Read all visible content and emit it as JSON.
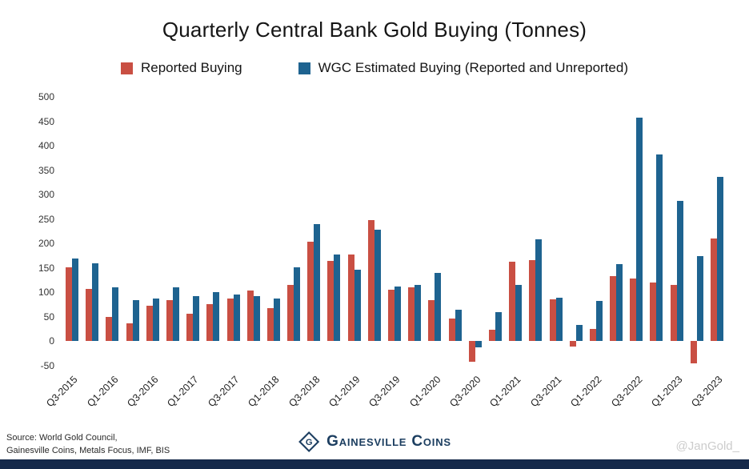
{
  "chart_data": {
    "type": "bar",
    "title": "Quarterly Central Bank Gold Buying (Tonnes)",
    "xlabel": "",
    "ylabel": "",
    "ylim": [
      -50,
      500
    ],
    "ytick_step": 50,
    "x_label_every": 2,
    "grid": false,
    "legend_position": "top",
    "categories": [
      "Q3-2015",
      "Q4-2015",
      "Q1-2016",
      "Q2-2016",
      "Q3-2016",
      "Q4-2016",
      "Q1-2017",
      "Q2-2017",
      "Q3-2017",
      "Q4-2017",
      "Q1-2018",
      "Q2-2018",
      "Q3-2018",
      "Q4-2018",
      "Q1-2019",
      "Q2-2019",
      "Q3-2019",
      "Q4-2019",
      "Q1-2020",
      "Q2-2020",
      "Q3-2020",
      "Q4-2020",
      "Q1-2021",
      "Q2-2021",
      "Q3-2021",
      "Q4-2021",
      "Q1-2022",
      "Q2-2022",
      "Q3-2022",
      "Q4-2022",
      "Q1-2023",
      "Q2-2023",
      "Q3-2023"
    ],
    "series": [
      {
        "name": "Reported Buying",
        "color": "#c94f43",
        "values": [
          152,
          108,
          50,
          37,
          72,
          85,
          57,
          76,
          88,
          104,
          68,
          116,
          203,
          164,
          178,
          248,
          106,
          110,
          84,
          46,
          -42,
          24,
          163,
          166,
          86,
          -10,
          26,
          133,
          128,
          121,
          115,
          -45,
          211
        ]
      },
      {
        "name": "WGC Estimated Buying (Reported and Unreported)",
        "color": "#1e6390",
        "values": [
          170,
          160,
          110,
          84,
          88,
          110,
          92,
          100,
          95,
          93,
          87,
          152,
          240,
          177,
          146,
          228,
          112,
          116,
          140,
          64,
          -12,
          60,
          115,
          209,
          90,
          33,
          82,
          158,
          458,
          382,
          287,
          175,
          337
        ]
      }
    ]
  },
  "footer": {
    "source_line1": "Source: World Gold Council,",
    "source_line2": "Gainesville Coins, Metals Focus, IMF, BIS",
    "logo_text": "Gainesville Coins",
    "handle": "@JanGold_"
  },
  "colors": {
    "reported": "#c94f43",
    "estimated": "#1e6390",
    "bottom_bar": "#15294a",
    "logo_navy": "#1c3e60"
  }
}
